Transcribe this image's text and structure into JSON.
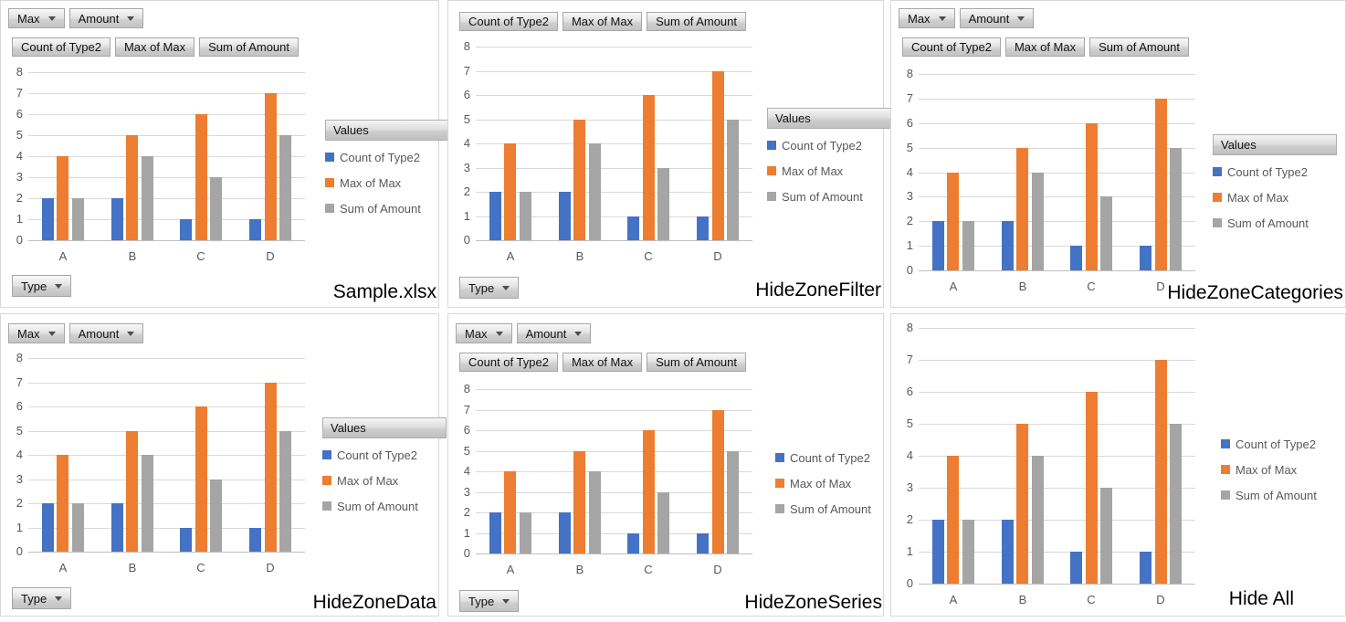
{
  "shared": {
    "filter_buttons": [
      "Max",
      "Amount"
    ],
    "axis_field_button": "Type",
    "values_header_label": "Values",
    "colors": {
      "series_blue": "#4472C4",
      "series_orange": "#ED7D31",
      "series_gray": "#A5A5A5",
      "gridline": "#D9D9D9",
      "axis_line": "#BFBFBF",
      "axis_text": "#595959",
      "label_text": "#000000"
    }
  },
  "chart_data": [
    {
      "type": "bar",
      "title": "Sample.xlsx",
      "categories": [
        "A",
        "B",
        "C",
        "D"
      ],
      "series": [
        {
          "name": "Count of Type2",
          "color": "#4472C4",
          "values": [
            2,
            2,
            1,
            1
          ]
        },
        {
          "name": "Max of Max",
          "color": "#ED7D31",
          "values": [
            4,
            5,
            6,
            7
          ]
        },
        {
          "name": "Sum of Amount",
          "color": "#A5A5A5",
          "values": [
            2,
            4,
            3,
            5
          ]
        }
      ],
      "ylim": [
        0,
        8
      ],
      "ytick_interval": 1,
      "grid": true,
      "legend_position": "right",
      "zones": {
        "filter_buttons": true,
        "data_field_buttons": true,
        "values_legend_header": true,
        "category_field_button": true,
        "legend": true
      }
    },
    {
      "type": "bar",
      "title": "HideZoneFilter",
      "categories": [
        "A",
        "B",
        "C",
        "D"
      ],
      "series": [
        {
          "name": "Count of Type2",
          "color": "#4472C4",
          "values": [
            2,
            2,
            1,
            1
          ]
        },
        {
          "name": "Max of Max",
          "color": "#ED7D31",
          "values": [
            4,
            5,
            6,
            7
          ]
        },
        {
          "name": "Sum of Amount",
          "color": "#A5A5A5",
          "values": [
            2,
            4,
            3,
            5
          ]
        }
      ],
      "ylim": [
        0,
        8
      ],
      "ytick_interval": 1,
      "grid": true,
      "legend_position": "right",
      "zones": {
        "filter_buttons": false,
        "data_field_buttons": true,
        "values_legend_header": true,
        "category_field_button": true,
        "legend": true
      }
    },
    {
      "type": "bar",
      "title": "HideZoneCategories",
      "categories": [
        "A",
        "B",
        "C",
        "D"
      ],
      "series": [
        {
          "name": "Count of Type2",
          "color": "#4472C4",
          "values": [
            2,
            2,
            1,
            1
          ]
        },
        {
          "name": "Max of Max",
          "color": "#ED7D31",
          "values": [
            4,
            5,
            6,
            7
          ]
        },
        {
          "name": "Sum of Amount",
          "color": "#A5A5A5",
          "values": [
            2,
            4,
            3,
            5
          ]
        }
      ],
      "ylim": [
        0,
        8
      ],
      "ytick_interval": 1,
      "grid": true,
      "legend_position": "right",
      "zones": {
        "filter_buttons": true,
        "data_field_buttons": true,
        "values_legend_header": true,
        "category_field_button": false,
        "legend": true
      }
    },
    {
      "type": "bar",
      "title": "HideZoneData",
      "categories": [
        "A",
        "B",
        "C",
        "D"
      ],
      "series": [
        {
          "name": "Count of Type2",
          "color": "#4472C4",
          "values": [
            2,
            2,
            1,
            1
          ]
        },
        {
          "name": "Max of Max",
          "color": "#ED7D31",
          "values": [
            4,
            5,
            6,
            7
          ]
        },
        {
          "name": "Sum of Amount",
          "color": "#A5A5A5",
          "values": [
            2,
            4,
            3,
            5
          ]
        }
      ],
      "ylim": [
        0,
        8
      ],
      "ytick_interval": 1,
      "grid": true,
      "legend_position": "right",
      "zones": {
        "filter_buttons": true,
        "data_field_buttons": false,
        "values_legend_header": true,
        "category_field_button": true,
        "legend": true
      }
    },
    {
      "type": "bar",
      "title": "HideZoneSeries",
      "categories": [
        "A",
        "B",
        "C",
        "D"
      ],
      "series": [
        {
          "name": "Count of Type2",
          "color": "#4472C4",
          "values": [
            2,
            2,
            1,
            1
          ]
        },
        {
          "name": "Max of Max",
          "color": "#ED7D31",
          "values": [
            4,
            5,
            6,
            7
          ]
        },
        {
          "name": "Sum of Amount",
          "color": "#A5A5A5",
          "values": [
            2,
            4,
            3,
            5
          ]
        }
      ],
      "ylim": [
        0,
        8
      ],
      "ytick_interval": 1,
      "grid": true,
      "legend_position": "right",
      "zones": {
        "filter_buttons": true,
        "data_field_buttons": true,
        "values_legend_header": false,
        "category_field_button": true,
        "legend": true
      }
    },
    {
      "type": "bar",
      "title": "Hide All",
      "categories": [
        "A",
        "B",
        "C",
        "D"
      ],
      "series": [
        {
          "name": "Count of Type2",
          "color": "#4472C4",
          "values": [
            2,
            2,
            1,
            1
          ]
        },
        {
          "name": "Max of Max",
          "color": "#ED7D31",
          "values": [
            4,
            5,
            6,
            7
          ]
        },
        {
          "name": "Sum of Amount",
          "color": "#A5A5A5",
          "values": [
            2,
            4,
            3,
            5
          ]
        }
      ],
      "ylim": [
        0,
        8
      ],
      "ytick_interval": 1,
      "grid": true,
      "legend_position": "right",
      "zones": {
        "filter_buttons": false,
        "data_field_buttons": false,
        "values_legend_header": false,
        "category_field_button": false,
        "legend": true
      }
    }
  ]
}
